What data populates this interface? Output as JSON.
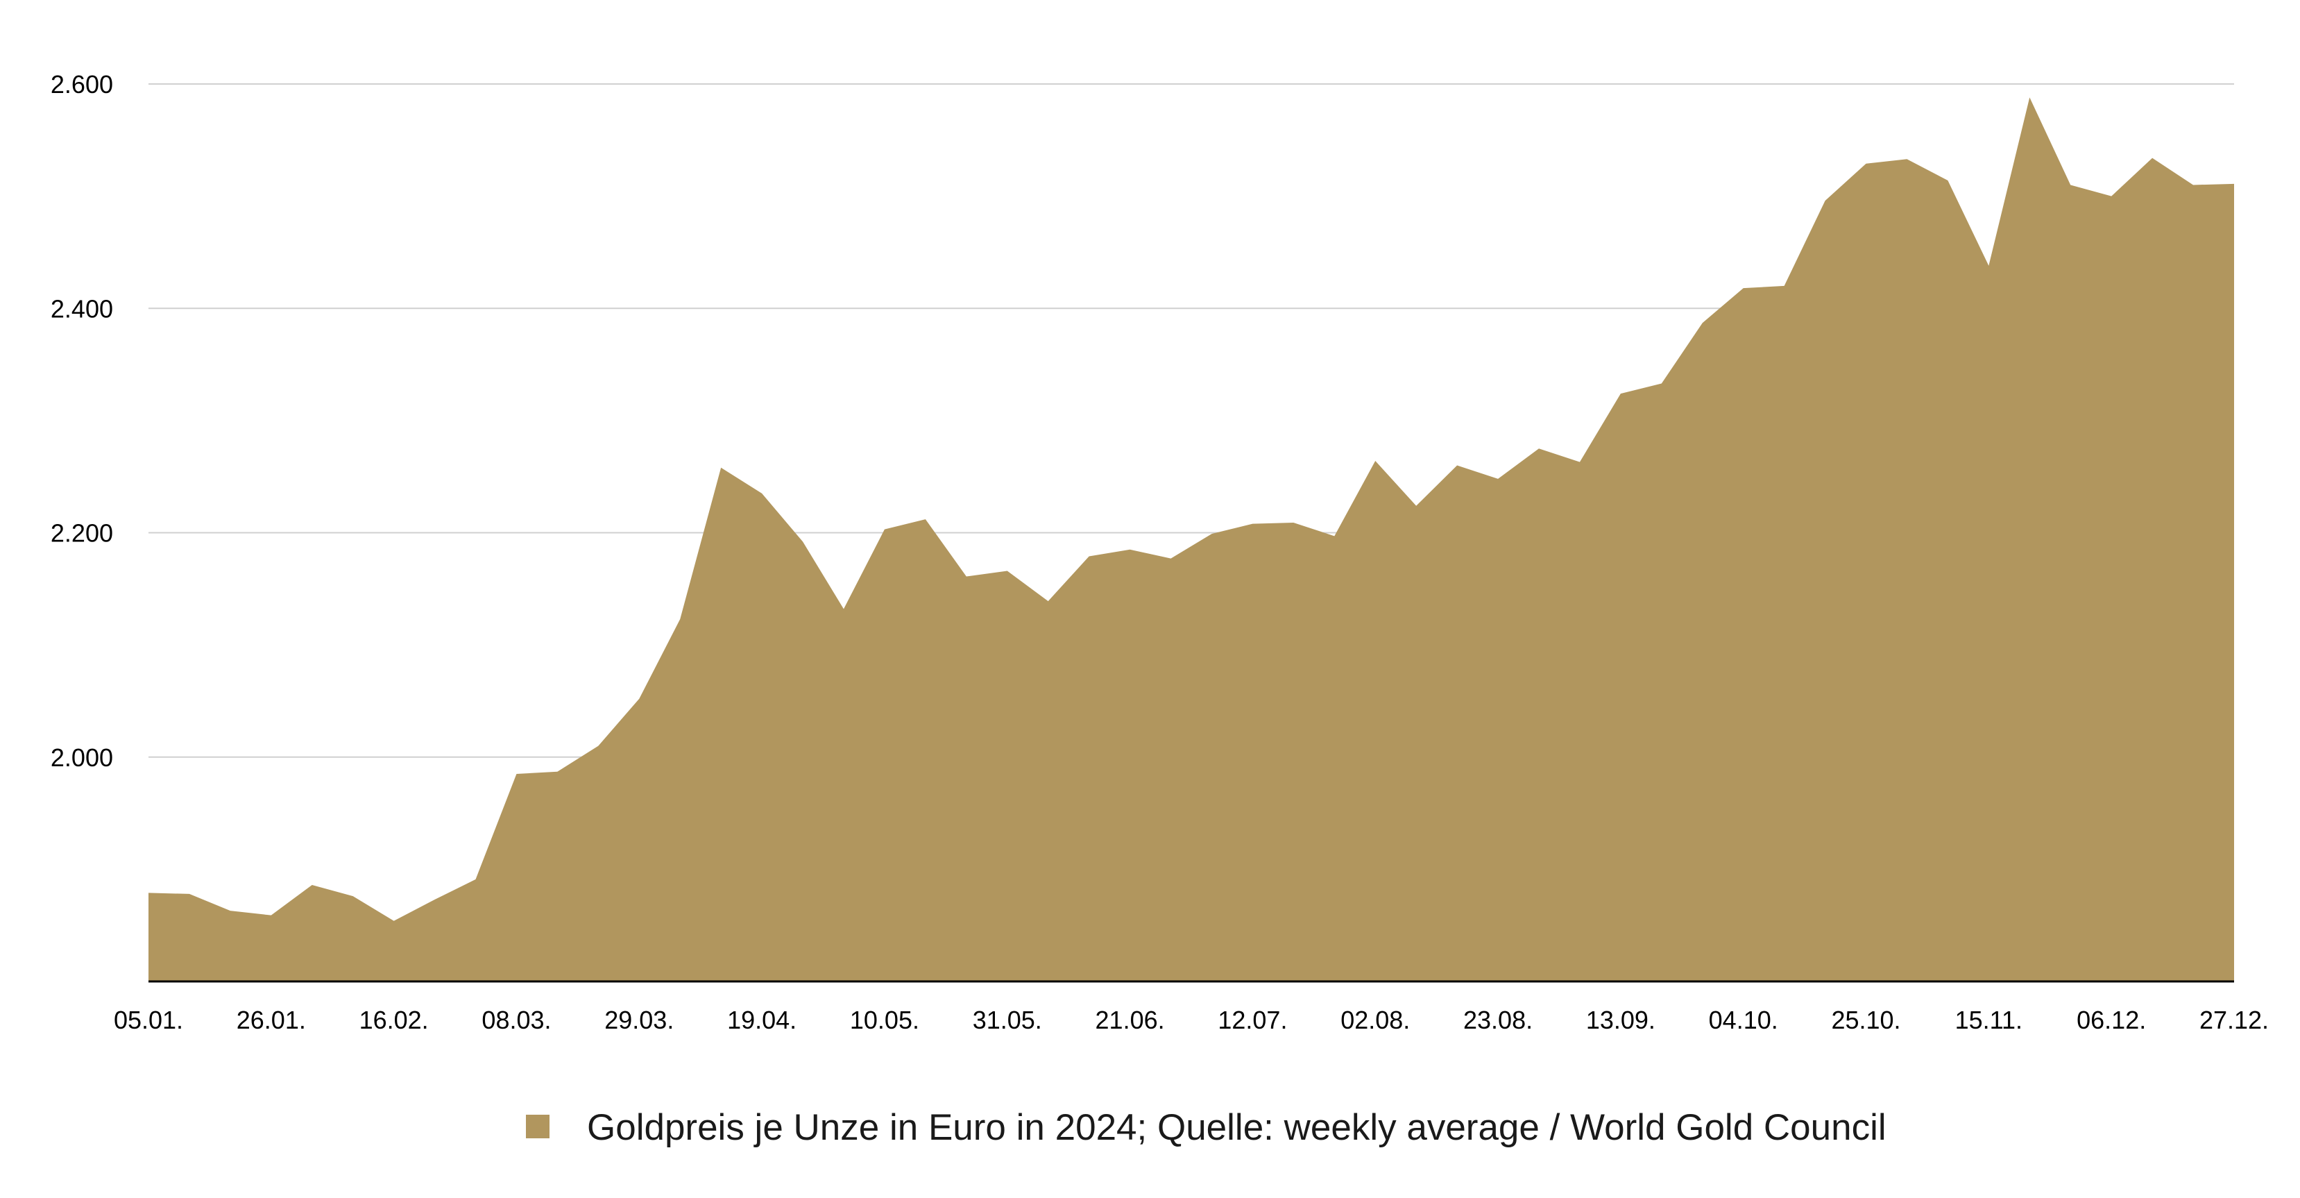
{
  "chart_data": {
    "type": "area",
    "title": "",
    "xlabel": "",
    "ylabel": "",
    "ylim": [
      1800,
      2600
    ],
    "y_ticks": [
      {
        "value": 2000,
        "label": "2.000"
      },
      {
        "value": 2200,
        "label": "2.200"
      },
      {
        "value": 2400,
        "label": "2.400"
      },
      {
        "value": 2600,
        "label": "2.600"
      }
    ],
    "x_tick_labels": [
      "05.01.",
      "26.01.",
      "16.02.",
      "08.03.",
      "29.03.",
      "19.04.",
      "10.05.",
      "31.05.",
      "21.06.",
      "12.07.",
      "02.08.",
      "23.08.",
      "13.09.",
      "04.10.",
      "25.10.",
      "15.11.",
      "06.12.",
      "27.12."
    ],
    "x_tick_every": 3,
    "grid": true,
    "legend_position": "bottom",
    "series": [
      {
        "name": "Goldpreis je Unze in Euro in 2024; Quelle: weekly average / World Gold Council",
        "color": "#b1965e",
        "values": [
          1879,
          1878,
          1863,
          1859,
          1886,
          1876,
          1854,
          1873,
          1891,
          1985,
          1987,
          2010,
          2052,
          2123,
          2258,
          2235,
          2192,
          2132,
          2203,
          2212,
          2161,
          2166,
          2139,
          2179,
          2185,
          2177,
          2199,
          2208,
          2209,
          2197,
          2264,
          2224,
          2260,
          2248,
          2275,
          2263,
          2324,
          2333,
          2387,
          2418,
          2420,
          2496,
          2529,
          2533,
          2514,
          2438,
          2588,
          2510,
          2500,
          2534,
          2510,
          2511
        ]
      }
    ]
  }
}
